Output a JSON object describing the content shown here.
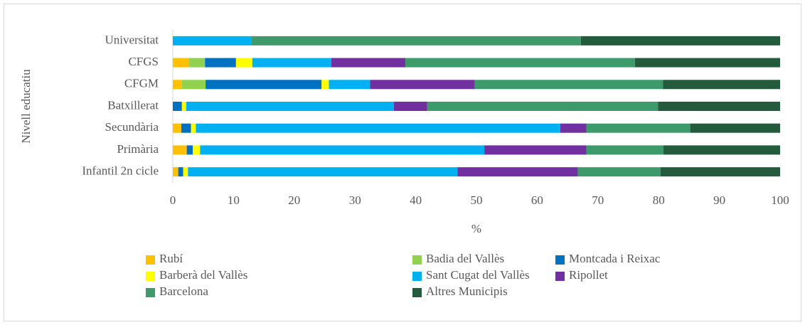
{
  "chart_data": {
    "type": "stacked_barh",
    "categories": [
      "Universitat",
      "CFGS",
      "CFGM",
      "Batxillerat",
      "Secundària",
      "Primària",
      "Infantil 2n cicle"
    ],
    "series": [
      {
        "name": "Rubí",
        "color": "#FFC000",
        "values": [
          0,
          2.7,
          1.5,
          0,
          1.4,
          2.3,
          0.9
        ]
      },
      {
        "name": "Badia del Vallès",
        "color": "#92D050",
        "values": [
          0,
          2.6,
          3.9,
          0,
          0,
          0,
          0
        ]
      },
      {
        "name": "Montcada i Reixac",
        "color": "#0070C0",
        "values": [
          0,
          5.1,
          19.1,
          1.5,
          1.6,
          1.0,
          0.8
        ]
      },
      {
        "name": "Barberà del Vallès",
        "color": "#FFFF00",
        "values": [
          0,
          2.7,
          1.2,
          0.7,
          0.8,
          1.2,
          0.8
        ]
      },
      {
        "name": "Sant Cugat del Vallès",
        "color": "#00B0F0",
        "values": [
          13.0,
          13.0,
          6.8,
          34.2,
          60.0,
          46.8,
          44.4
        ]
      },
      {
        "name": "Ripollet",
        "color": "#7030A0",
        "values": [
          0,
          12.2,
          17.2,
          5.5,
          4.3,
          16.8,
          19.8
        ]
      },
      {
        "name": "Barcelona",
        "color": "#3D9A6B",
        "values": [
          54.2,
          37.8,
          31.0,
          38.0,
          17.1,
          12.7,
          13.6
        ]
      },
      {
        "name": "Altres Municipis",
        "color": "#235B3C",
        "values": [
          32.8,
          23.9,
          19.3,
          20.1,
          14.8,
          19.2,
          19.7
        ]
      }
    ],
    "xlabel": "%",
    "ylabel": "Nivell educatiu",
    "xlim": [
      0,
      100
    ],
    "xticks": [
      0,
      10,
      20,
      30,
      40,
      50,
      60,
      70,
      80,
      90,
      100
    ],
    "grid": false,
    "legend": "bottom"
  }
}
